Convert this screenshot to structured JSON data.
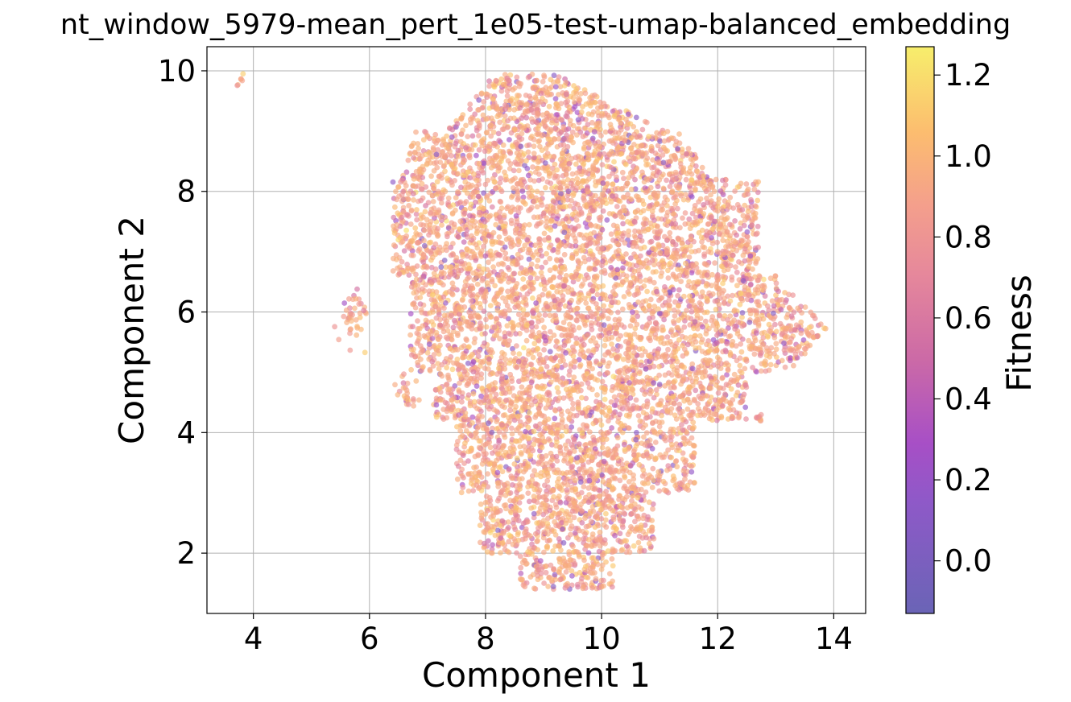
{
  "chart_data": {
    "type": "scatter",
    "title": "nt_window_5979-mean_pert_1e05-test-umap-balanced_embedding",
    "xlabel": "Component 1",
    "ylabel": "Component 2",
    "xlim": [
      3.2,
      14.55
    ],
    "ylim": [
      1.0,
      10.4
    ],
    "xticks": [
      "4",
      "6",
      "8",
      "10",
      "12",
      "14"
    ],
    "yticks": [
      "2",
      "4",
      "6",
      "8",
      "10"
    ],
    "grid": true,
    "colormap": "plasma",
    "point_alpha": 0.65,
    "colorbar": {
      "label": "Fitness",
      "range": [
        -0.13,
        1.27
      ],
      "ticks": [
        "0.0",
        "0.2",
        "0.4",
        "0.6",
        "0.8",
        "1.0",
        "1.2"
      ]
    },
    "series": [
      {
        "clusters": [
          {
            "label": "main body",
            "x_range": [
              6.4,
              14.0
            ],
            "y_range": [
              1.4,
              10.0
            ],
            "approx_points": 7000,
            "typical_fitness": 0.95
          },
          {
            "label": "isolated top-left",
            "x_center": 3.78,
            "y_center": 9.85,
            "approx_points": 6,
            "typical_fitness": 1.0
          },
          {
            "label": "left cluster",
            "x_center": 5.8,
            "y_center": 5.9,
            "approx_points": 40,
            "typical_fitness": 0.95
          },
          {
            "label": "small cluster near 6.7, 4.7",
            "x_center": 6.65,
            "y_center": 4.65,
            "approx_points": 25,
            "typical_fitness": 0.95
          },
          {
            "label": "small cluster near 12.7, 4.2",
            "x_center": 12.72,
            "y_center": 4.22,
            "approx_points": 10,
            "typical_fitness": 0.95
          }
        ]
      }
    ]
  }
}
